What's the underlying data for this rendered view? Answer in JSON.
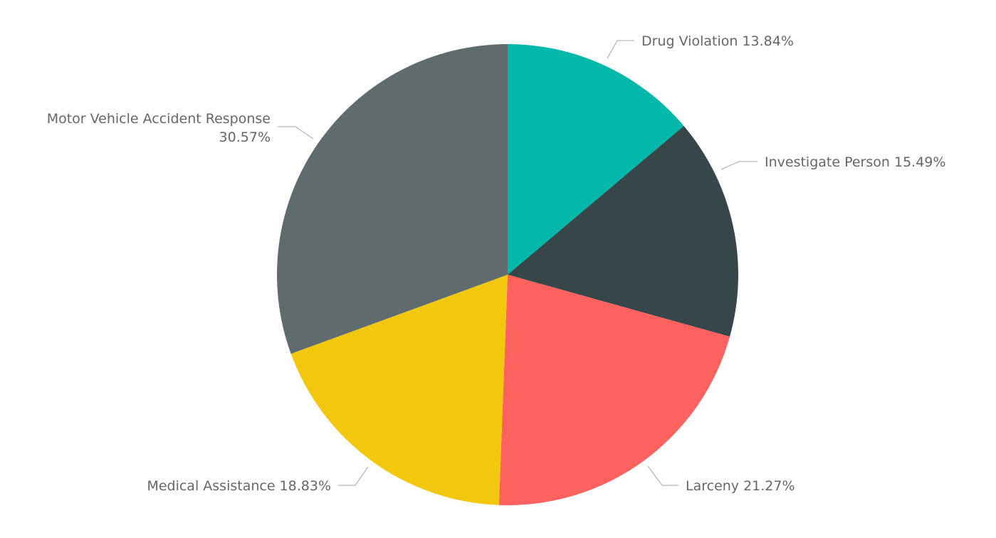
{
  "chart_data": {
    "type": "pie",
    "title": "",
    "slices": [
      {
        "label": "Drug Violation",
        "value": 13.84,
        "value_label": "13.84%",
        "color": "#01B8AA"
      },
      {
        "label": "Investigate Person",
        "value": 15.49,
        "value_label": "15.49%",
        "color": "#374649"
      },
      {
        "label": "Larceny",
        "value": 21.27,
        "value_label": "21.27%",
        "color": "#FD625E"
      },
      {
        "label": "Medical Assistance",
        "value": 18.83,
        "value_label": "18.83%",
        "color": "#F2C80F"
      },
      {
        "label": "Motor Vehicle Accident Response",
        "value": 30.57,
        "value_label": "30.57%",
        "color": "#5F6B6D"
      }
    ],
    "start_angle": "12 o'clock",
    "direction": "clockwise",
    "legend": "none",
    "data_labels": "outside"
  }
}
